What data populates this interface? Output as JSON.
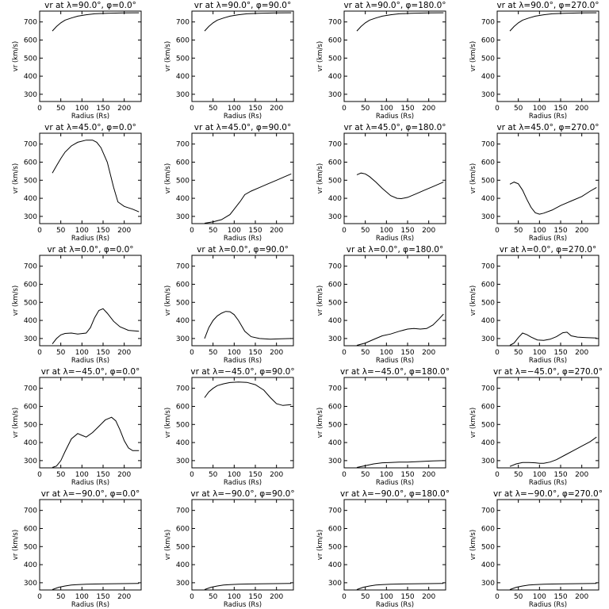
{
  "chart_data": {
    "type": "line",
    "grid": false,
    "xlim": [
      0,
      240
    ],
    "ylim": [
      260,
      760
    ],
    "xticks": [
      0,
      50,
      100,
      150,
      200
    ],
    "yticks": [
      300,
      400,
      500,
      600,
      700
    ],
    "xlabel": "Radius (Rs)",
    "ylabel": "vr (km/s)",
    "panels": [
      {
        "title": "vr at λ=90.0°, φ=0.0°",
        "x": [
          30,
          40,
          50,
          60,
          75,
          90,
          110,
          130,
          160,
          200,
          235
        ],
        "y": [
          650,
          675,
          695,
          710,
          722,
          732,
          740,
          745,
          748,
          750,
          751
        ]
      },
      {
        "title": "vr at λ=90.0°, φ=90.0°",
        "x": [
          30,
          40,
          50,
          60,
          75,
          90,
          110,
          130,
          160,
          200,
          235
        ],
        "y": [
          650,
          675,
          695,
          710,
          722,
          732,
          740,
          745,
          748,
          750,
          751
        ]
      },
      {
        "title": "vr at λ=90.0°, φ=180.0°",
        "x": [
          30,
          40,
          50,
          60,
          75,
          90,
          110,
          130,
          160,
          200,
          235
        ],
        "y": [
          650,
          675,
          695,
          710,
          722,
          732,
          740,
          745,
          748,
          750,
          751
        ]
      },
      {
        "title": "vr at λ=90.0°, φ=270.0°",
        "x": [
          30,
          40,
          50,
          60,
          75,
          90,
          110,
          130,
          160,
          200,
          235
        ],
        "y": [
          650,
          675,
          695,
          710,
          722,
          732,
          740,
          745,
          748,
          750,
          751
        ]
      },
      {
        "title": "vr at λ=45.0°, φ=0.0°",
        "x": [
          30,
          40,
          50,
          60,
          75,
          90,
          110,
          125,
          135,
          145,
          160,
          175,
          185,
          200,
          220,
          235
        ],
        "y": [
          540,
          580,
          620,
          655,
          690,
          710,
          722,
          722,
          710,
          680,
          600,
          460,
          380,
          355,
          340,
          325
        ]
      },
      {
        "title": "vr at λ=45.0°, φ=90.0°",
        "x": [
          30,
          50,
          70,
          90,
          100,
          115,
          125,
          140,
          160,
          180,
          200,
          220,
          235
        ],
        "y": [
          262,
          270,
          282,
          310,
          340,
          385,
          420,
          440,
          460,
          480,
          500,
          520,
          535
        ]
      },
      {
        "title": "vr at λ=45.0°, φ=180.0°",
        "x": [
          30,
          40,
          50,
          60,
          75,
          90,
          110,
          125,
          135,
          150,
          170,
          190,
          210,
          235
        ],
        "y": [
          530,
          540,
          535,
          520,
          490,
          455,
          415,
          400,
          398,
          405,
          425,
          445,
          465,
          490
        ]
      },
      {
        "title": "vr at λ=45.0°, φ=270.0°",
        "x": [
          30,
          40,
          50,
          60,
          70,
          80,
          90,
          100,
          110,
          130,
          150,
          175,
          200,
          220,
          235
        ],
        "y": [
          478,
          490,
          480,
          445,
          395,
          350,
          320,
          312,
          318,
          335,
          360,
          385,
          410,
          440,
          460
        ]
      },
      {
        "title": "vr at λ=0.0°, φ=0.0°",
        "x": [
          30,
          40,
          50,
          60,
          75,
          90,
          110,
          120,
          130,
          140,
          150,
          160,
          175,
          190,
          210,
          235
        ],
        "y": [
          270,
          300,
          320,
          328,
          330,
          325,
          330,
          360,
          415,
          455,
          465,
          440,
          395,
          365,
          345,
          340
        ]
      },
      {
        "title": "vr at λ=0.0°, φ=90.0°",
        "x": [
          30,
          40,
          50,
          60,
          70,
          80,
          90,
          100,
          110,
          125,
          140,
          160,
          185,
          210,
          235
        ],
        "y": [
          300,
          360,
          400,
          425,
          440,
          450,
          448,
          432,
          400,
          340,
          310,
          300,
          296,
          298,
          300
        ]
      },
      {
        "title": "vr at λ=0.0°, φ=180.0°",
        "x": [
          30,
          50,
          70,
          90,
          110,
          130,
          150,
          165,
          180,
          195,
          210,
          225,
          235
        ],
        "y": [
          262,
          275,
          295,
          315,
          325,
          340,
          352,
          355,
          352,
          355,
          375,
          410,
          435
        ]
      },
      {
        "title": "vr at λ=0.0°, φ=270.0°",
        "x": [
          30,
          40,
          50,
          60,
          70,
          80,
          95,
          110,
          125,
          140,
          155,
          165,
          175,
          190,
          210,
          235
        ],
        "y": [
          262,
          275,
          305,
          330,
          322,
          308,
          292,
          290,
          296,
          310,
          332,
          335,
          315,
          308,
          305,
          303
        ]
      },
      {
        "title": "vr at λ=−45.0°, φ=0.0°",
        "x": [
          30,
          40,
          50,
          60,
          75,
          90,
          100,
          110,
          125,
          140,
          155,
          170,
          180,
          190,
          200,
          210,
          220,
          235
        ],
        "y": [
          262,
          270,
          300,
          350,
          420,
          450,
          440,
          430,
          455,
          490,
          525,
          540,
          520,
          470,
          410,
          370,
          355,
          355
        ]
      },
      {
        "title": "vr at λ=−45.0°, φ=90.0°",
        "x": [
          30,
          40,
          50,
          60,
          75,
          90,
          110,
          130,
          150,
          170,
          185,
          200,
          215,
          235
        ],
        "y": [
          648,
          680,
          700,
          715,
          725,
          732,
          735,
          733,
          720,
          690,
          650,
          615,
          605,
          610
        ]
      },
      {
        "title": "vr at λ=−45.0°, φ=180.0°",
        "x": [
          30,
          50,
          70,
          90,
          110,
          130,
          150,
          170,
          190,
          210,
          235
        ],
        "y": [
          262,
          272,
          282,
          288,
          290,
          292,
          292,
          294,
          296,
          298,
          300
        ]
      },
      {
        "title": "vr at λ=−45.0°, φ=270.0°",
        "x": [
          30,
          45,
          60,
          75,
          90,
          100,
          110,
          125,
          140,
          160,
          180,
          200,
          220,
          235
        ],
        "y": [
          268,
          282,
          290,
          290,
          288,
          285,
          285,
          292,
          305,
          330,
          355,
          380,
          405,
          430
        ]
      },
      {
        "title": "vr at λ=−90.0°, φ=0.0°",
        "x": [
          30,
          45,
          60,
          75,
          90,
          110,
          130,
          160,
          200,
          235
        ],
        "y": [
          262,
          275,
          282,
          287,
          290,
          292,
          293,
          294,
          295,
          296
        ]
      },
      {
        "title": "vr at λ=−90.0°, φ=90.0°",
        "x": [
          30,
          45,
          60,
          75,
          90,
          110,
          130,
          160,
          200,
          235
        ],
        "y": [
          262,
          275,
          282,
          287,
          290,
          292,
          293,
          294,
          295,
          296
        ]
      },
      {
        "title": "vr at λ=−90.0°, φ=180.0°",
        "x": [
          30,
          45,
          60,
          75,
          90,
          110,
          130,
          160,
          200,
          235
        ],
        "y": [
          262,
          275,
          282,
          287,
          290,
          292,
          293,
          294,
          295,
          296
        ]
      },
      {
        "title": "vr at λ=−90.0°, φ=270.0°",
        "x": [
          30,
          45,
          60,
          75,
          90,
          110,
          130,
          160,
          200,
          235
        ],
        "y": [
          262,
          275,
          282,
          287,
          290,
          292,
          293,
          294,
          295,
          296
        ]
      }
    ]
  }
}
